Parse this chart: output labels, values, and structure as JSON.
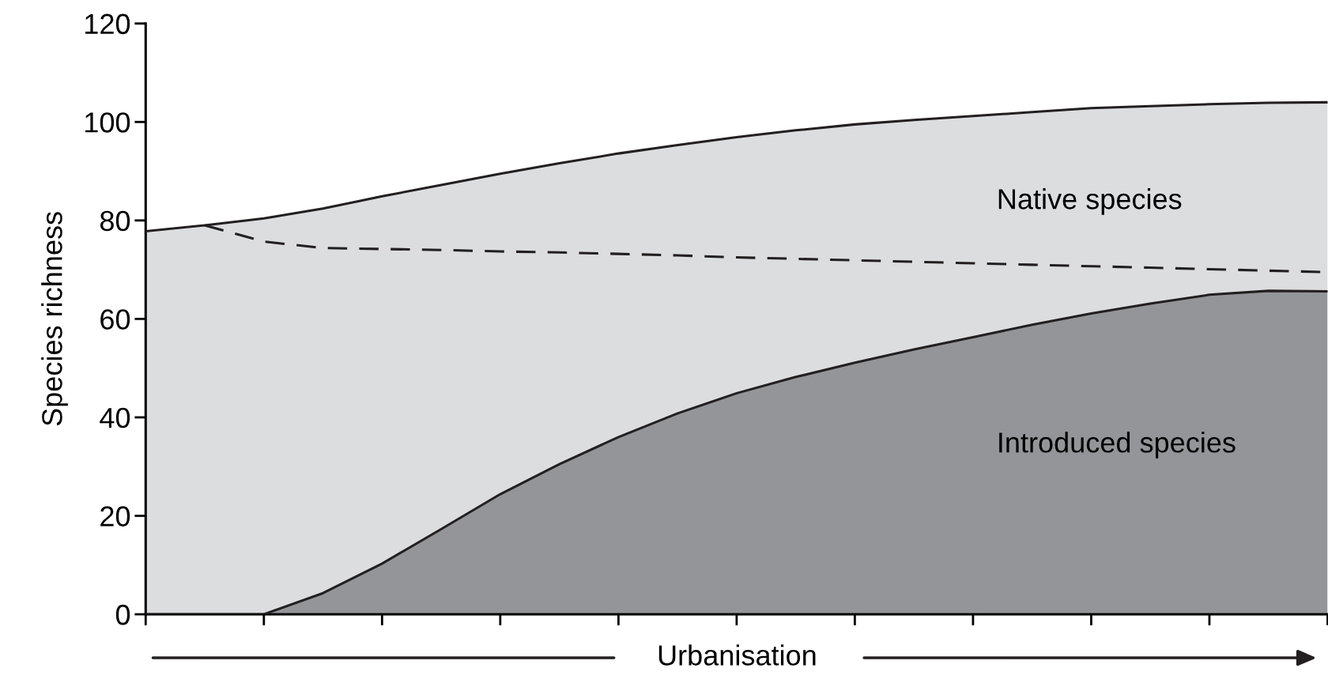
{
  "chart_data": {
    "type": "area",
    "stacked": true,
    "ylabel": "Species richness",
    "xlabel": "Urbanisation",
    "categories": [
      null,
      null,
      null,
      null,
      null,
      null,
      null,
      null,
      null,
      null,
      null,
      null,
      null,
      null,
      null,
      null,
      null,
      null,
      null,
      null,
      null
    ],
    "series": [
      {
        "name": "Introduced species",
        "color": "#939598",
        "values": [
          0,
          0,
          0,
          4.3,
          10.3,
          17.3,
          24.4,
          30.5,
          36,
          40.8,
          44.9,
          48.2,
          51.1,
          53.8,
          56.3,
          58.8,
          61.1,
          63.1,
          64.9,
          65.7,
          65.6
        ]
      },
      {
        "name": "Native species",
        "color": "#dcdddf",
        "values": [
          77.8,
          79,
          80.4,
          78.1,
          74.6,
          69.9,
          65.1,
          61.1,
          57.6,
          54.5,
          52,
          50.1,
          48.4,
          46.6,
          44.9,
          43.2,
          41.7,
          40.1,
          38.7,
          38.2,
          38.4
        ]
      },
      {
        "type": "line",
        "line_style": "dashed",
        "color": "#231f20",
        "values": [
          null,
          79,
          75.7,
          74.4,
          74.2,
          74,
          73.7,
          73.5,
          73.2,
          72.9,
          72.5,
          72.2,
          71.9,
          71.6,
          71.3,
          71,
          70.7,
          70.4,
          70.1,
          69.8,
          69.5
        ]
      }
    ],
    "ylim": [
      0,
      120
    ],
    "yticks": [
      0,
      20,
      40,
      60,
      80,
      100,
      120
    ],
    "grid": false,
    "legend": false
  }
}
